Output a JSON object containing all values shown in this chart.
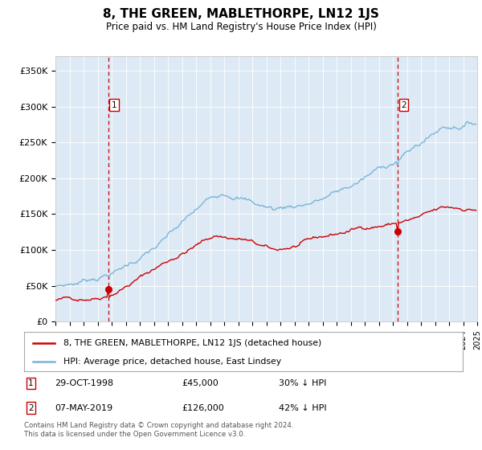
{
  "title": "8, THE GREEN, MABLETHORPE, LN12 1JS",
  "subtitle": "Price paid vs. HM Land Registry's House Price Index (HPI)",
  "legend_line1": "8, THE GREEN, MABLETHORPE, LN12 1JS (detached house)",
  "legend_line2": "HPI: Average price, detached house, East Lindsey",
  "footer": "Contains HM Land Registry data © Crown copyright and database right 2024.\nThis data is licensed under the Open Government Licence v3.0.",
  "transaction1_date": "29-OCT-1998",
  "transaction1_price": "£45,000",
  "transaction1_hpi": "30% ↓ HPI",
  "transaction2_date": "07-MAY-2019",
  "transaction2_price": "£126,000",
  "transaction2_hpi": "42% ↓ HPI",
  "hpi_color": "#7ab4d8",
  "price_color": "#cc0000",
  "vline_color": "#cc0000",
  "bg_color": "#ddeaf5",
  "ylim": [
    0,
    370000
  ],
  "yticks": [
    0,
    50000,
    100000,
    150000,
    200000,
    250000,
    300000,
    350000
  ],
  "ytick_labels": [
    "£0",
    "£50K",
    "£100K",
    "£150K",
    "£200K",
    "£250K",
    "£300K",
    "£350K"
  ],
  "start_year": 1995,
  "end_year": 2025
}
